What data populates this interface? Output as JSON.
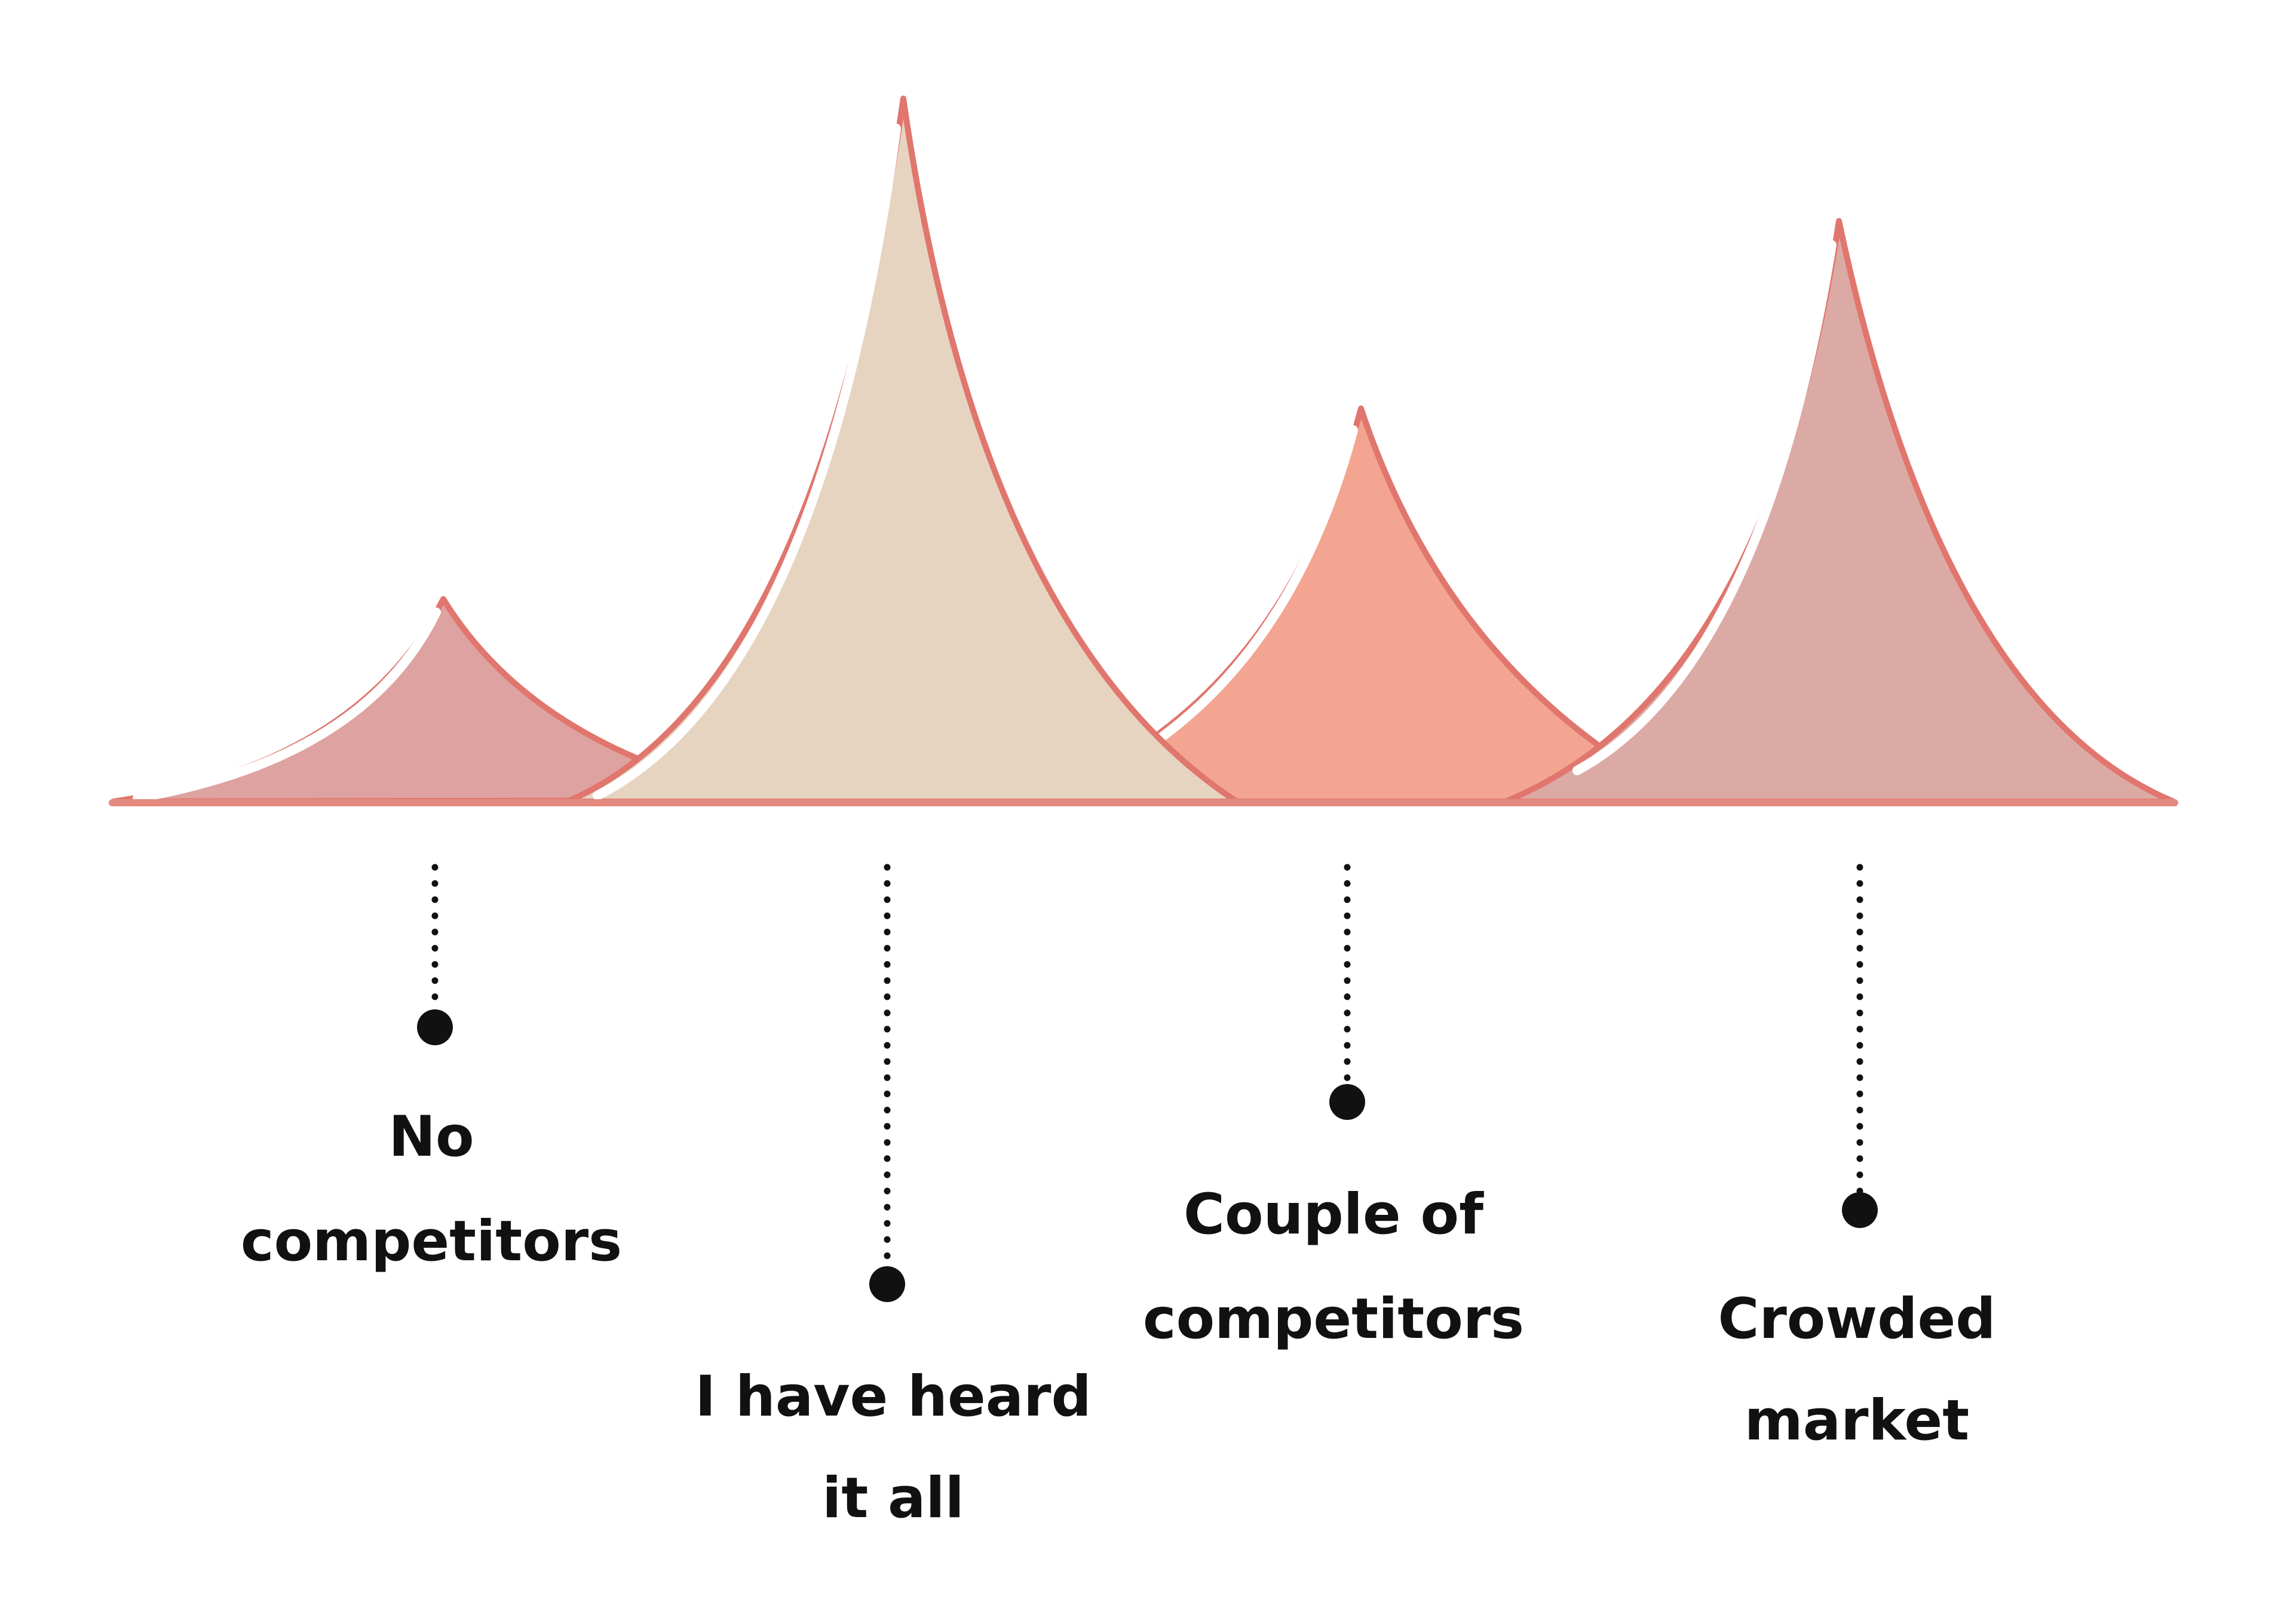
{
  "diagram": {
    "colors": {
      "outline": "#e0766d",
      "baseline": "#e48a80",
      "peak_no_competitors": "#dea2a0",
      "peak_heard_it_all": "#e6d4c0",
      "peak_couple": "#f3a591",
      "peak_crowded": "#dcaaa5",
      "ink": "#111111"
    },
    "peaks": [
      {
        "id": "no-competitors",
        "label_lines": [
          "No",
          "competitors"
        ],
        "relative_height": 0.29
      },
      {
        "id": "heard-it-all",
        "label_lines": [
          "I have heard",
          "it all"
        ],
        "relative_height": 1.0
      },
      {
        "id": "couple-of-competitors",
        "label_lines": [
          "Couple of",
          "competitors"
        ],
        "relative_height": 0.56
      },
      {
        "id": "crowded-market",
        "label_lines": [
          "Crowded",
          "market"
        ],
        "relative_height": 0.82
      }
    ]
  }
}
